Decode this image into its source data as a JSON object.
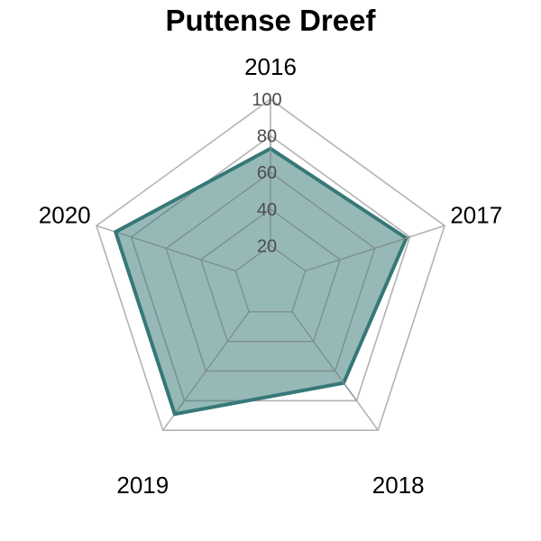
{
  "chart_data": {
    "type": "radar",
    "title": "Puttense Dreef",
    "axes": [
      "2016",
      "2017",
      "2018",
      "2019",
      "2020"
    ],
    "series": [
      {
        "values": [
          73,
          78,
          68,
          89,
          89
        ]
      }
    ],
    "r_range": [
      0,
      100
    ],
    "r_ticks": [
      20,
      40,
      60,
      80,
      100
    ],
    "grid": true,
    "legend": "none",
    "colors": {
      "series_line": "#367877",
      "series_fill": "#367877",
      "outer_grid": "#b3b3b3",
      "inner_grid": "#7f8f8f"
    }
  }
}
